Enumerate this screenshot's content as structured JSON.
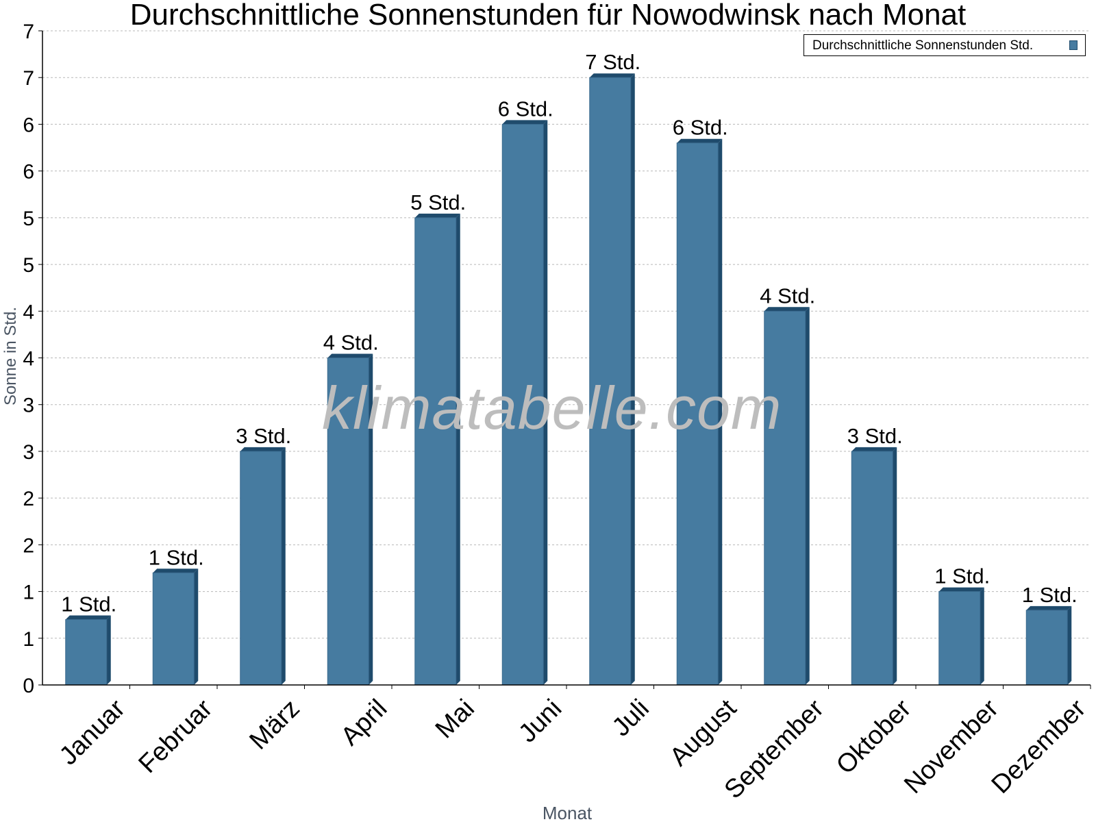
{
  "chart_data": {
    "type": "bar",
    "title": "Durchschnittliche Sonnenstunden für Nowodwinsk nach Monat",
    "xlabel": "Monat",
    "ylabel": "Sonne in Std.",
    "categories": [
      "Januar",
      "Februar",
      "März",
      "April",
      "Mai",
      "Juni",
      "Juli",
      "August",
      "September",
      "Oktober",
      "November",
      "Dezember"
    ],
    "series": [
      {
        "name": "Durchschnittliche Sonnenstunden Std.",
        "values": [
          0.7,
          1.2,
          2.5,
          3.5,
          5.0,
          6.0,
          6.5,
          5.8,
          4.0,
          2.5,
          1.0,
          0.8
        ],
        "data_labels": [
          "1 Std.",
          "1 Std.",
          "3 Std.",
          "4 Std.",
          "5 Std.",
          "6 Std.",
          "7 Std.",
          "6 Std.",
          "4 Std.",
          "3 Std.",
          "1 Std.",
          "1 Std."
        ]
      }
    ],
    "ylim": [
      0,
      7
    ],
    "y_tick_values": [
      0,
      0.5,
      1,
      1.5,
      2,
      2.5,
      3,
      3.5,
      4,
      4.5,
      5,
      5.5,
      6,
      6.5,
      7
    ],
    "y_tick_labels": [
      "0",
      "1",
      "1",
      "2",
      "2",
      "3",
      "3",
      "4",
      "4",
      "5",
      "5",
      "6",
      "6",
      "7",
      "7"
    ],
    "grid": true,
    "legend_position": "top-right",
    "bar_color": "#467ba0",
    "bar_edge_color": "#1f4b6c",
    "watermark": "klimatabelle.com"
  }
}
